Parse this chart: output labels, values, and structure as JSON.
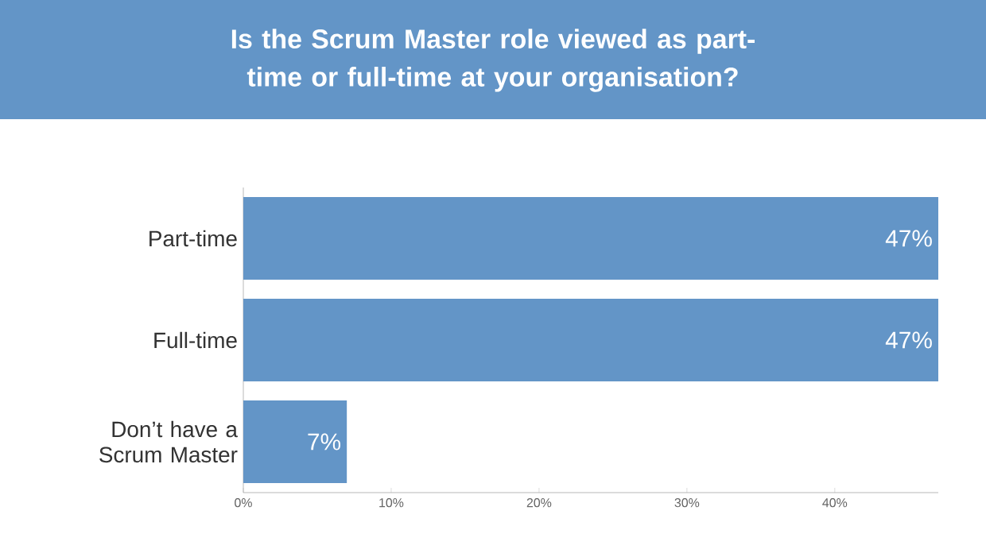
{
  "chart_data": {
    "type": "bar",
    "orientation": "horizontal",
    "title": "Is the Scrum Master role viewed as part-time or full-time at your organisation?",
    "categories": [
      "Part-time",
      "Full-time",
      "Don’t have a Scrum Master"
    ],
    "values": [
      47,
      47,
      7
    ],
    "color": "#6395c7",
    "value_labels": [
      "47%",
      "47%",
      "7%"
    ],
    "xlim": [
      0,
      47
    ],
    "xticks": [
      {
        "value": 0,
        "label": "0%"
      },
      {
        "value": 10,
        "label": "10%"
      },
      {
        "value": 20,
        "label": "20%"
      },
      {
        "value": 30,
        "label": "30%"
      },
      {
        "value": 40,
        "label": "40%"
      }
    ]
  }
}
